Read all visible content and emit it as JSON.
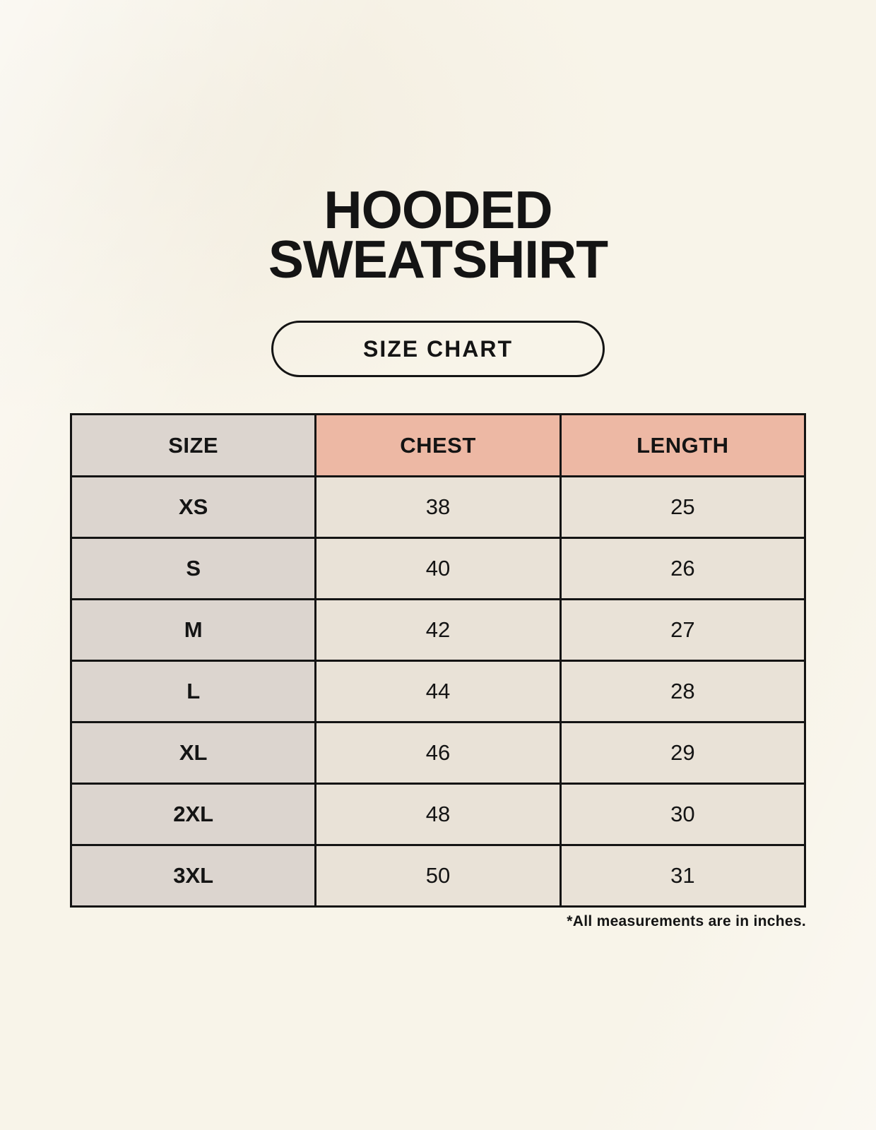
{
  "page": {
    "title_line1": "HOODED",
    "title_line2": "SWEATSHIRT",
    "size_chart_button": "SIZE CHART",
    "footnote": "*All measurements are in inches."
  },
  "colors": {
    "page_background": "#f8f4e9",
    "header_accent_pink": "#edb8a4",
    "size_column_gray": "#dcd5cf",
    "data_cell_cream": "#e9e2d7",
    "table_border": "#141414",
    "text": "#141414"
  },
  "chart_data": {
    "type": "table",
    "title": "HOODED SWEATSHIRT",
    "subtitle": "SIZE CHART",
    "columns": [
      "SIZE",
      "CHEST",
      "LENGTH"
    ],
    "rows": [
      [
        "XS",
        "38",
        "25"
      ],
      [
        "S",
        "40",
        "26"
      ],
      [
        "M",
        "42",
        "27"
      ],
      [
        "L",
        "44",
        "28"
      ],
      [
        "XL",
        "46",
        "29"
      ],
      [
        "2XL",
        "48",
        "30"
      ],
      [
        "3XL",
        "50",
        "31"
      ]
    ],
    "units_note": "*All measurements are in inches."
  }
}
